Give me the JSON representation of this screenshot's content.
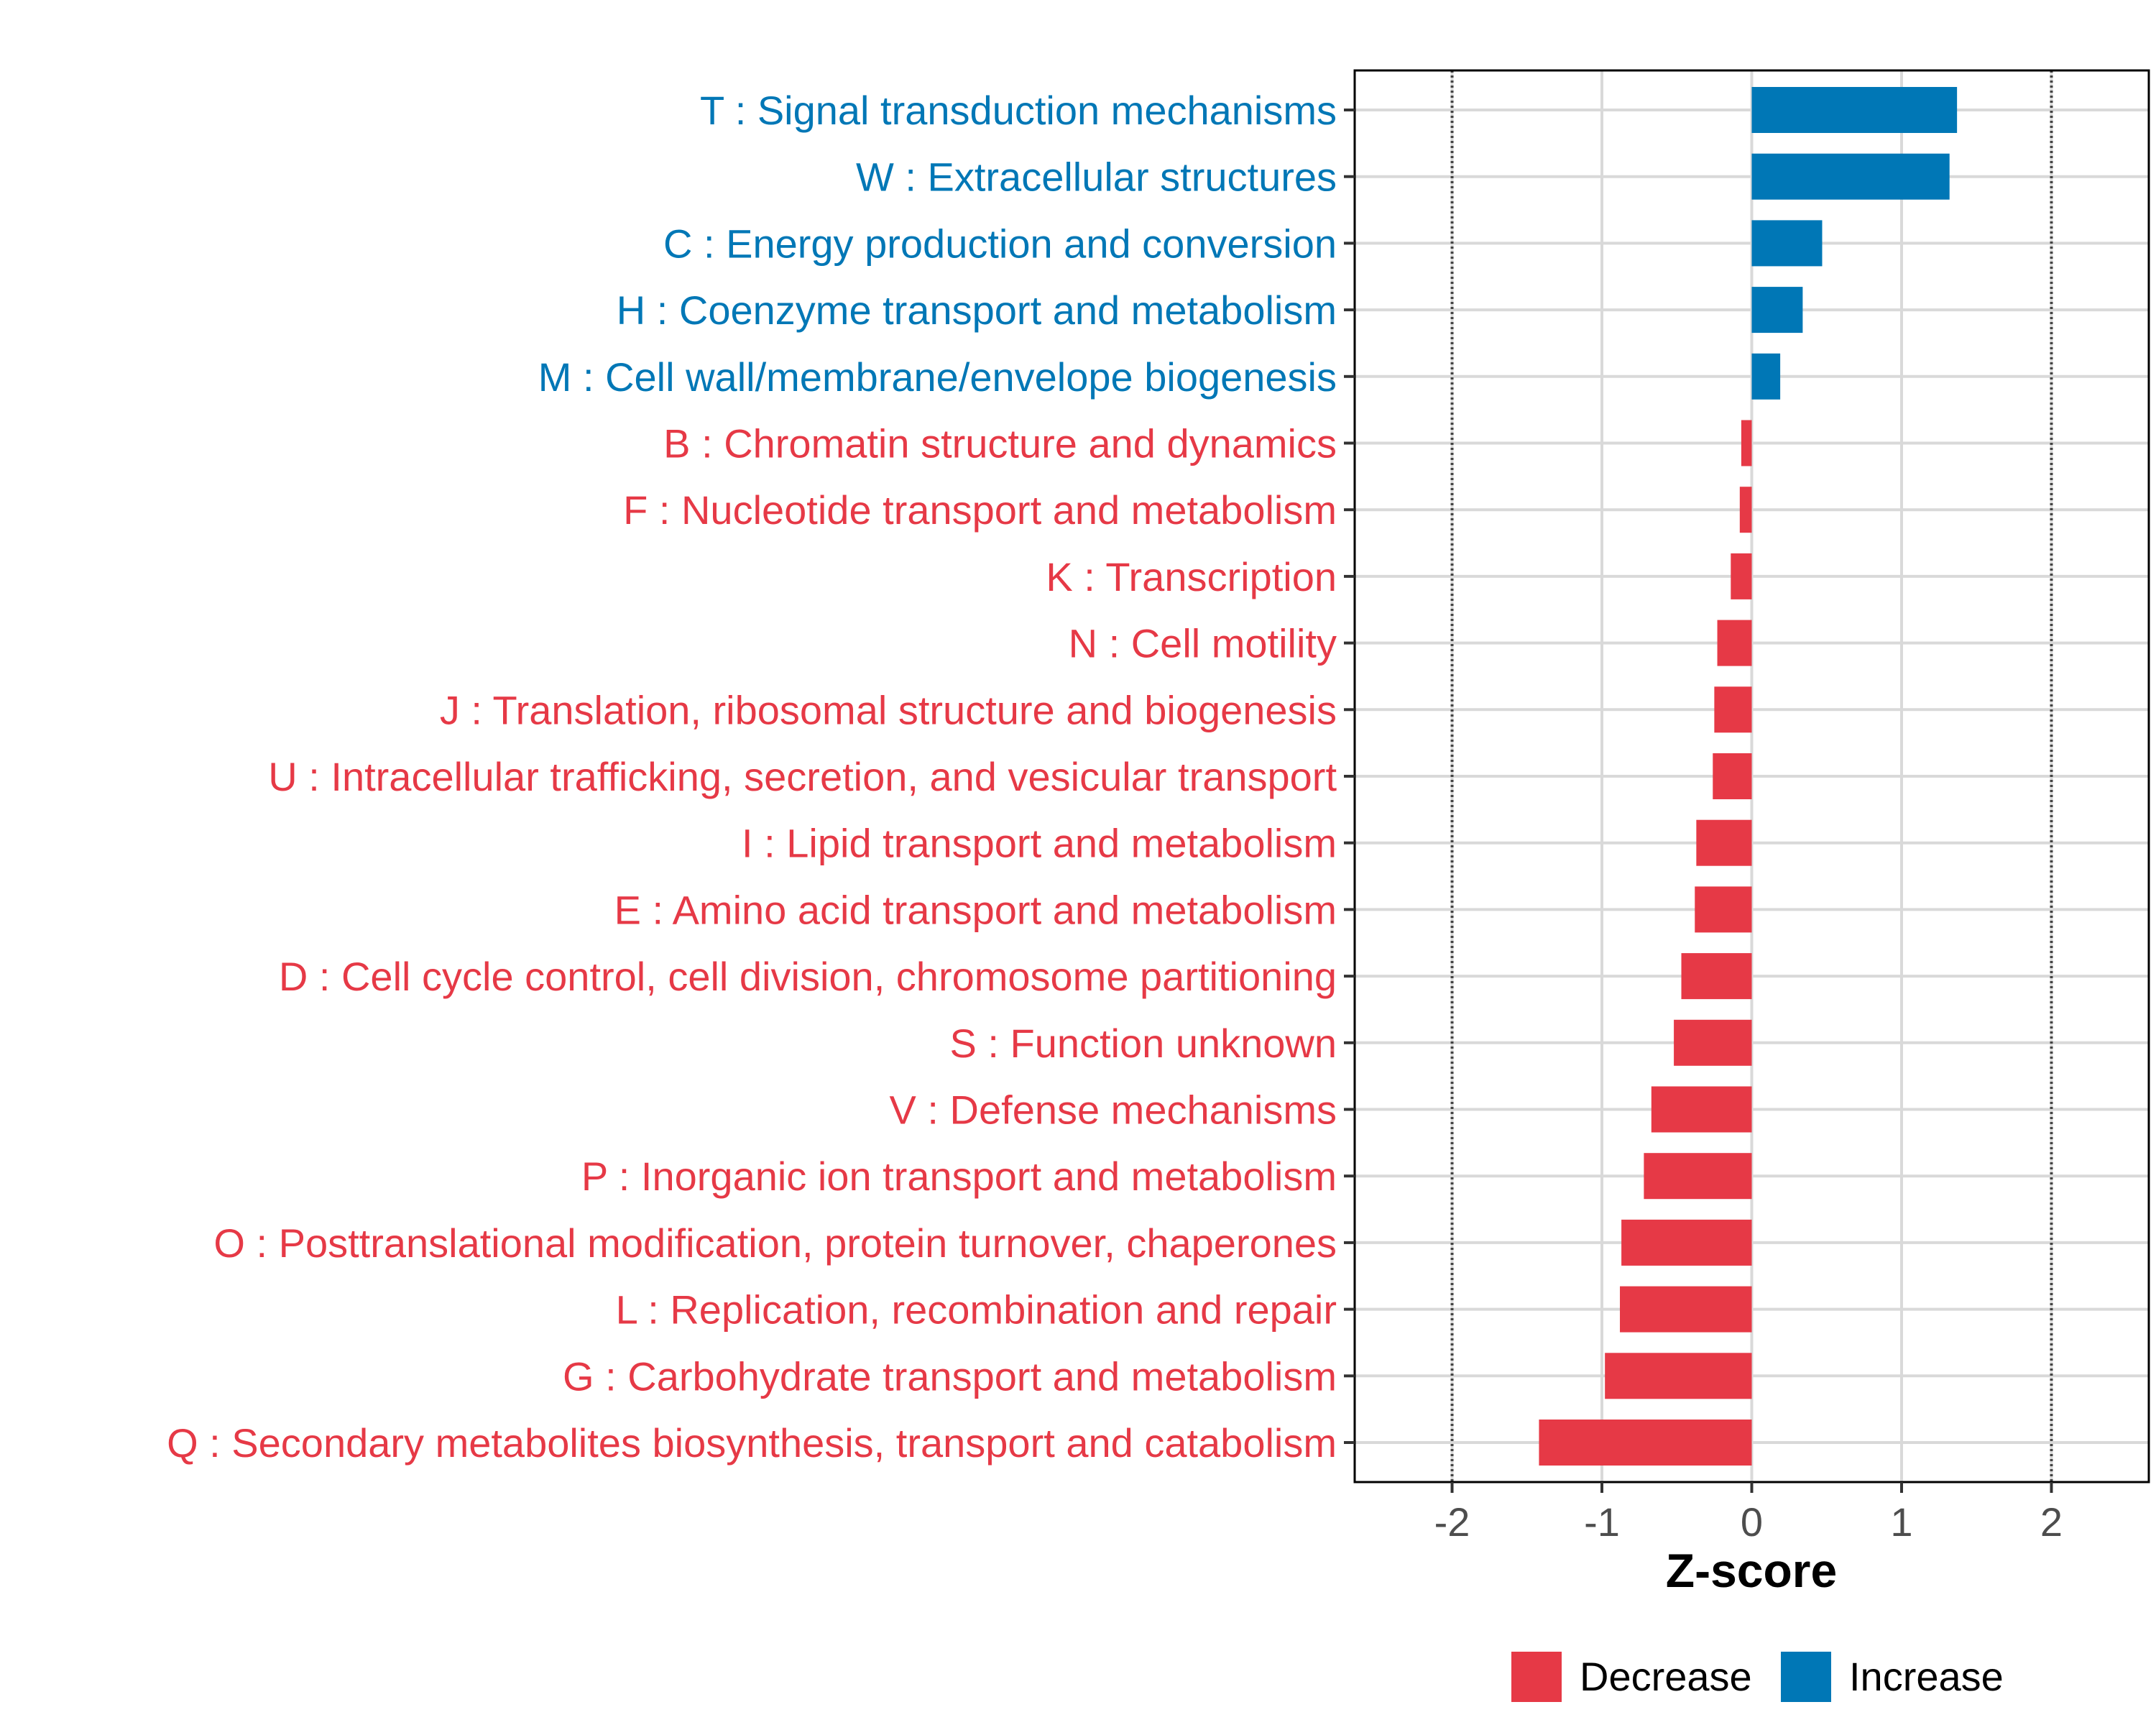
{
  "colors": {
    "decrease": "#E63946",
    "increase": "#0077B6",
    "grid": "#d9d9d9",
    "ref_line": "#444444"
  },
  "chart_data": {
    "type": "bar",
    "orientation": "horizontal",
    "xlabel": "Z-score",
    "xlim": [
      -2.65,
      2.65
    ],
    "xticks": [
      -2,
      -1,
      0,
      1,
      2
    ],
    "xtick_labels": [
      "-2",
      "-1",
      "0",
      "1",
      "2"
    ],
    "reference_lines": [
      -2,
      2
    ],
    "grid": true,
    "legend": {
      "position": "bottom",
      "entries": [
        {
          "label": "Decrease",
          "group": "decrease"
        },
        {
          "label": "Increase",
          "group": "increase"
        }
      ]
    },
    "categories": [
      "T : Signal transduction mechanisms",
      "W : Extracellular structures",
      "C : Energy production and conversion",
      "H : Coenzyme transport and metabolism",
      "M : Cell wall/membrane/envelope biogenesis",
      "B : Chromatin structure and dynamics",
      "F : Nucleotide transport and metabolism",
      "K : Transcription",
      "N : Cell motility",
      "J : Translation, ribosomal structure and biogenesis",
      "U : Intracellular trafficking, secretion, and vesicular transport",
      "I : Lipid transport and metabolism",
      "E : Amino acid transport and metabolism",
      "D : Cell cycle control, cell division, chromosome partitioning",
      "S : Function unknown",
      "V : Defense mechanisms",
      "P : Inorganic ion transport and metabolism",
      "O : Posttranslational modification, protein turnover, chaperones",
      "L : Replication, recombination and repair",
      "G : Carbohydrate transport and metabolism",
      "Q : Secondary metabolites biosynthesis, transport and catabolism"
    ],
    "values": [
      1.37,
      1.32,
      0.47,
      0.34,
      0.19,
      -0.07,
      -0.08,
      -0.14,
      -0.23,
      -0.25,
      -0.26,
      -0.37,
      -0.38,
      -0.47,
      -0.52,
      -0.67,
      -0.72,
      -0.87,
      -0.88,
      -0.98,
      -1.42
    ],
    "groups": [
      "increase",
      "increase",
      "increase",
      "increase",
      "increase",
      "decrease",
      "decrease",
      "decrease",
      "decrease",
      "decrease",
      "decrease",
      "decrease",
      "decrease",
      "decrease",
      "decrease",
      "decrease",
      "decrease",
      "decrease",
      "decrease",
      "decrease",
      "decrease"
    ]
  }
}
